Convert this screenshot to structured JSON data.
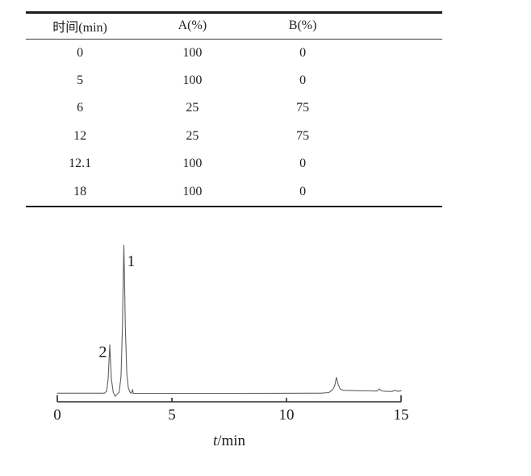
{
  "gradient_table": {
    "headers": [
      "时间(min)",
      "A(%)",
      "B(%)"
    ],
    "rows": [
      {
        "time": "0",
        "a": "100",
        "b": "0"
      },
      {
        "time": "5",
        "a": "100",
        "b": "0"
      },
      {
        "time": "6",
        "a": "25",
        "b": "75"
      },
      {
        "time": "12",
        "a": "25",
        "b": "75"
      },
      {
        "time": "12.1",
        "a": "100",
        "b": "0"
      },
      {
        "time": "18",
        "a": "100",
        "b": "0"
      }
    ]
  },
  "chart_data": {
    "type": "line",
    "title": "",
    "xlabel": "t/min",
    "ylabel": "",
    "xlim": [
      0,
      15
    ],
    "xticks": [
      "0",
      "5",
      "10",
      "15"
    ],
    "grid": false,
    "legend": null,
    "axis_color": "#2a2a2a",
    "series": [
      {
        "name": "chromatogram-trace",
        "color": "#5f5f5f",
        "points": [
          [
            0.0,
            0.4
          ],
          [
            1.5,
            0.4
          ],
          [
            2.05,
            0.4
          ],
          [
            2.15,
            1.5
          ],
          [
            2.22,
            10
          ],
          [
            2.29,
            33
          ],
          [
            2.36,
            10
          ],
          [
            2.44,
            1
          ],
          [
            2.52,
            -1.8
          ],
          [
            2.6,
            -0.5
          ],
          [
            2.7,
            1
          ],
          [
            2.78,
            12
          ],
          [
            2.84,
            45
          ],
          [
            2.88,
            80
          ],
          [
            2.905,
            100
          ],
          [
            2.93,
            80
          ],
          [
            2.97,
            45
          ],
          [
            3.03,
            14
          ],
          [
            3.1,
            4
          ],
          [
            3.18,
            0.8
          ],
          [
            3.24,
            0.3
          ],
          [
            3.28,
            2.8
          ],
          [
            3.32,
            0.2
          ],
          [
            3.6,
            0.2
          ],
          [
            5.0,
            0.2
          ],
          [
            8.0,
            0.2
          ],
          [
            10.0,
            0.3
          ],
          [
            11.5,
            0.4
          ],
          [
            11.85,
            0.8
          ],
          [
            12.0,
            2.5
          ],
          [
            12.1,
            5
          ],
          [
            12.18,
            11
          ],
          [
            12.26,
            6
          ],
          [
            12.35,
            3
          ],
          [
            12.5,
            2.3
          ],
          [
            12.8,
            2.1
          ],
          [
            13.2,
            2.0
          ],
          [
            13.6,
            1.9
          ],
          [
            13.95,
            1.8
          ],
          [
            14.05,
            3.2
          ],
          [
            14.15,
            1.9
          ],
          [
            14.35,
            1.6
          ],
          [
            14.6,
            1.5
          ],
          [
            14.75,
            2.3
          ],
          [
            14.85,
            1.6
          ],
          [
            15.0,
            2.0
          ]
        ]
      }
    ],
    "annotations": [
      {
        "label": "1",
        "t": 2.9,
        "height_pct": 100,
        "side": "right"
      },
      {
        "label": "2",
        "t": 2.3,
        "height_pct": 33,
        "side": "left"
      }
    ]
  }
}
